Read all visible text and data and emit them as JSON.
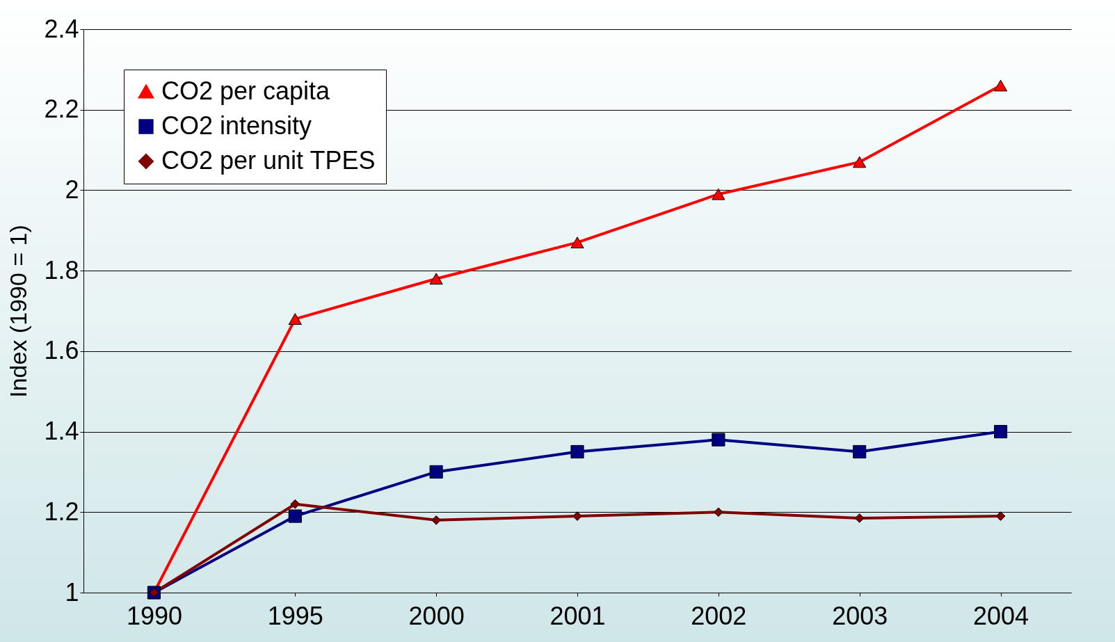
{
  "chart_data": {
    "type": "line",
    "ylabel": "Index (1990 = 1)",
    "categories": [
      "1990",
      "1995",
      "2000",
      "2001",
      "2002",
      "2003",
      "2004"
    ],
    "ylim": [
      1,
      2.4
    ],
    "yticks": [
      1,
      1.2,
      1.4,
      1.6,
      1.8,
      2,
      2.2,
      2.4
    ],
    "grid": "y",
    "legend": "top left",
    "series": [
      {
        "name": "CO2 per capita",
        "color": "#ff0000",
        "marker": "triangle",
        "values": [
          1,
          1.68,
          1.78,
          1.87,
          1.99,
          2.07,
          2.26
        ]
      },
      {
        "name": "CO2 intensity",
        "color": "#000080",
        "marker": "square",
        "values": [
          1,
          1.19,
          1.3,
          1.35,
          1.38,
          1.35,
          1.4
        ]
      },
      {
        "name": "CO2 per unit TPES",
        "color": "#800000",
        "marker": "diamond",
        "values": [
          1,
          1.22,
          1.18,
          1.19,
          1.2,
          1.185,
          1.19
        ]
      }
    ]
  }
}
